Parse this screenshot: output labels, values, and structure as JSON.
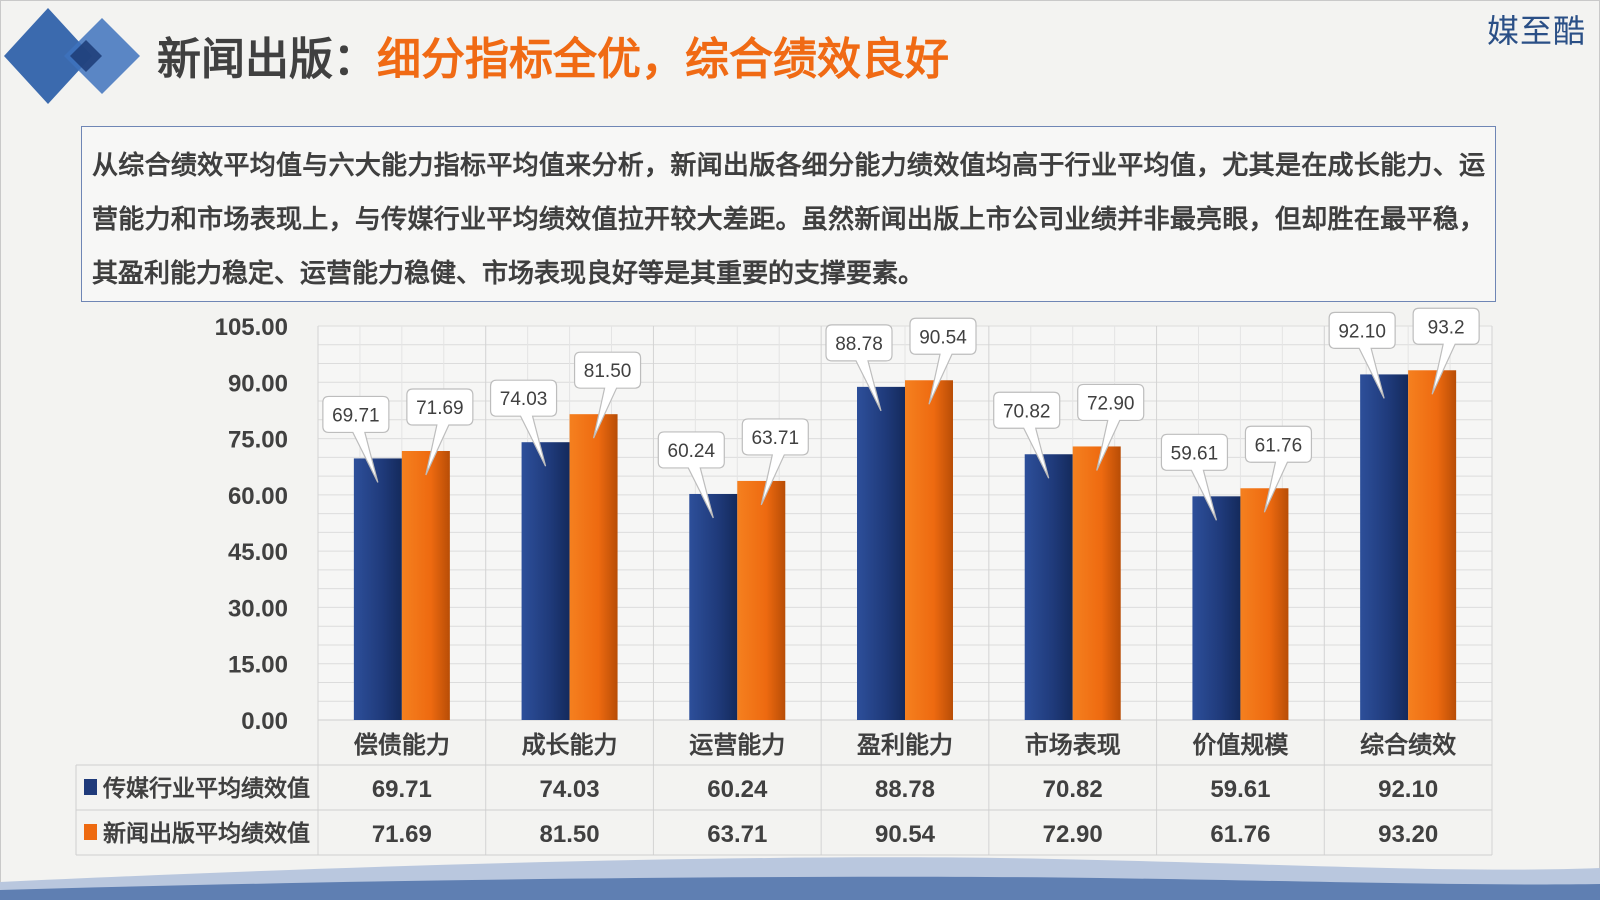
{
  "header": {
    "title_prefix": "新闻出版：",
    "title_highlight": "细分指标全优，综合绩效良好",
    "brand": "媒至酷"
  },
  "summary": {
    "text": "从综合绩效平均值与六大能力指标平均值来分析，新闻出版各细分能力绩效值均高于行业平均值，尤其是在成长能力、运营能力和市场表现上，与传媒行业平均绩效值拉开较大差距。虽然新闻出版上市公司业绩并非最亮眼，但却胜在最平稳，其盈利能力稳定、运营能力稳健、市场表现良好等是其重要的支撑要素。"
  },
  "colors": {
    "series1": "#1f3a7a",
    "series2": "#ee6a10",
    "accent_title": "#f06a14",
    "deco_blue": "#2b5ea8"
  },
  "chart_data": {
    "type": "bar",
    "title": "",
    "xlabel": "",
    "ylabel": "",
    "ylim": [
      0,
      105
    ],
    "yticks": [
      "0.00",
      "15.00",
      "30.00",
      "45.00",
      "60.00",
      "75.00",
      "90.00",
      "105.00"
    ],
    "grid": true,
    "legend": "data-table",
    "categories": [
      "偿债能力",
      "成长能力",
      "运营能力",
      "盈利能力",
      "市场表现",
      "价值规模",
      "综合绩效"
    ],
    "series": [
      {
        "name": "传媒行业平均绩效值",
        "values": [
          69.71,
          74.03,
          60.24,
          88.78,
          70.82,
          59.61,
          92.1
        ],
        "labels": [
          "69.71",
          "74.03",
          "60.24",
          "88.78",
          "70.82",
          "59.61",
          "92.10"
        ],
        "table": [
          "69.71",
          "74.03",
          "60.24",
          "88.78",
          "70.82",
          "59.61",
          "92.10"
        ]
      },
      {
        "name": "新闻出版平均绩效值",
        "values": [
          71.69,
          81.5,
          63.71,
          90.54,
          72.9,
          61.76,
          93.2
        ],
        "labels": [
          "71.69",
          "81.50",
          "63.71",
          "90.54",
          "72.90",
          "61.76",
          "93.2"
        ],
        "table": [
          "71.69",
          "81.50",
          "63.71",
          "90.54",
          "72.90",
          "61.76",
          "93.20"
        ]
      }
    ]
  }
}
